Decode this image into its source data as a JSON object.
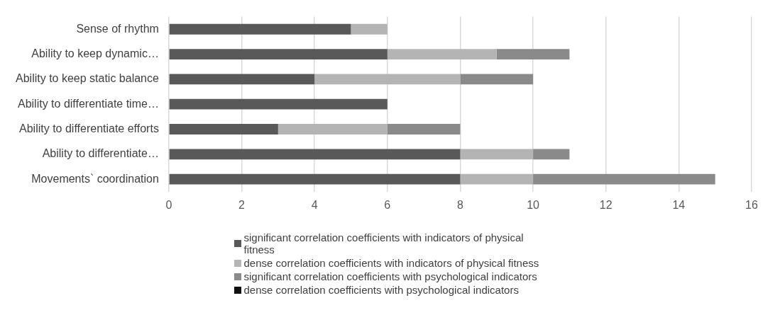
{
  "chart_data": {
    "type": "bar",
    "orientation": "horizontal",
    "stacked": true,
    "categories": [
      "Sense of rhythm",
      "Ability to keep dynamic…",
      "Ability to keep static balance",
      "Ability to differentiate time…",
      "Ability to differentiate efforts",
      "Ability to differentiate…",
      "Movements` coordination"
    ],
    "series": [
      {
        "name": "significant correlation coefficients with indicators of physical fitness",
        "color": "#595959",
        "values": [
          5,
          6,
          4,
          6,
          3,
          8,
          8
        ]
      },
      {
        "name": "dense correlation coefficients with indicators of physical fitness",
        "color": "#b4b4b4",
        "values": [
          1,
          3,
          4,
          0,
          3,
          2,
          2
        ]
      },
      {
        "name": "significant correlation coefficients with psychological indicators",
        "color": "#8a8a8a",
        "values": [
          0,
          2,
          2,
          0,
          2,
          1,
          5
        ]
      },
      {
        "name": "dense correlation coefficients with psychological indicators",
        "color": "#111111",
        "values": [
          0,
          0,
          0,
          0,
          0,
          0,
          0
        ]
      }
    ],
    "xlim": [
      0,
      16
    ],
    "xticks": [
      0,
      2,
      4,
      6,
      8,
      10,
      12,
      14,
      16
    ],
    "grid": "x",
    "legend": "bottom"
  }
}
